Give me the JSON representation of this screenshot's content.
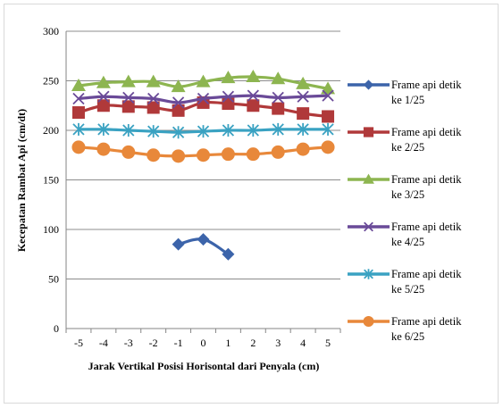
{
  "chart_data": {
    "type": "line",
    "x": [
      -5,
      -4,
      -3,
      -2,
      -1,
      0,
      1,
      2,
      3,
      4,
      5
    ],
    "x_tick_labels": [
      "-5",
      "-4",
      "-3",
      "-2",
      "-1",
      "0",
      "1",
      "2",
      "3",
      "4",
      "5"
    ],
    "xlabel": "Jarak Vertikal Posisi Horisontal dari Penyala (cm)",
    "ylabel": "Kecepatan Rambat Api (cm/dt)",
    "ylim": [
      0,
      300
    ],
    "y_ticks": [
      0,
      50,
      100,
      150,
      200,
      250,
      300
    ],
    "grid": "horizontal major",
    "legend_position": "right",
    "series": [
      {
        "name": "Frame api detik ke 1/25",
        "legend_lines": [
          "Frame api detik",
          "ke 1/25"
        ],
        "color": "#3c64aa",
        "marker": "diamond",
        "values": [
          null,
          null,
          null,
          null,
          85,
          90,
          75,
          null,
          null,
          null,
          null
        ]
      },
      {
        "name": "Frame api detik ke 2/25",
        "legend_lines": [
          "Frame api detik",
          "ke 2/25"
        ],
        "color": "#b0393a",
        "marker": "square",
        "values": [
          218,
          225,
          224,
          223,
          220,
          228,
          227,
          225,
          222,
          217,
          214
        ]
      },
      {
        "name": "Frame api detik ke 3/25",
        "legend_lines": [
          "Frame api detik",
          "ke 3/25"
        ],
        "color": "#8db550",
        "marker": "triangle",
        "values": [
          245,
          248,
          249,
          249,
          244,
          249,
          253,
          254,
          252,
          247,
          242
        ]
      },
      {
        "name": "Frame api detik ke 4/25",
        "legend_lines": [
          "Frame api detik",
          "ke 4/25"
        ],
        "color": "#6a4a98",
        "marker": "x",
        "values": [
          232,
          234,
          233,
          232,
          228,
          232,
          234,
          235,
          233,
          234,
          235
        ]
      },
      {
        "name": "Frame api detik ke 5/25",
        "legend_lines": [
          "Frame api detik",
          "ke 5/25"
        ],
        "color": "#3aa2c2",
        "marker": "asterisk",
        "values": [
          201,
          201,
          200,
          199,
          198,
          199,
          200,
          200,
          201,
          201,
          201
        ]
      },
      {
        "name": "Frame api detik ke 6/25",
        "legend_lines": [
          "Frame api detik",
          "ke 6/25"
        ],
        "color": "#e8883a",
        "marker": "circle",
        "values": [
          183,
          181,
          178,
          175,
          174,
          175,
          176,
          176,
          178,
          181,
          183
        ]
      }
    ]
  }
}
